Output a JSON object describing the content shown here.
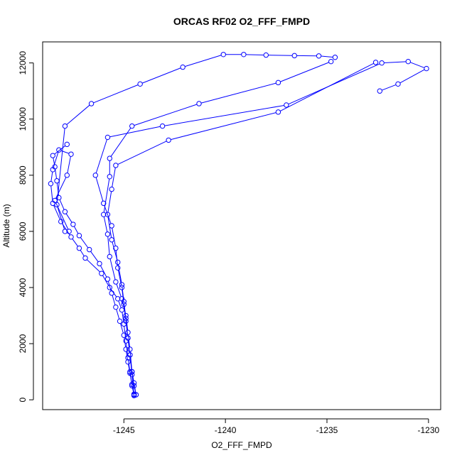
{
  "chart_data": {
    "type": "line",
    "title": "ORCAS RF02 O2_FFF_FMPD",
    "xlabel": "O2_FFF_FMPD",
    "ylabel": "Altitude (m)",
    "xlim": [
      -1249.0,
      -1229.4
    ],
    "ylim": [
      -350,
      12750
    ],
    "xticks": [
      -1245,
      -1240,
      -1235,
      -1230
    ],
    "xtick_labels": [
      "-1245",
      "-1240",
      "-1235",
      "-1230"
    ],
    "yticks": [
      0,
      2000,
      4000,
      6000,
      8000,
      10000,
      12000
    ],
    "ytick_labels": [
      "0",
      "2000",
      "4000",
      "6000",
      "8000",
      "10000",
      "12000"
    ],
    "grid": false,
    "legend": "none",
    "series_color": "#0000ff",
    "series": [
      {
        "x": [
          -1244.5,
          -1244.6,
          -1244.7,
          -1244.8,
          -1244.9,
          -1245.0,
          -1245.1,
          -1245.3,
          -1245.7,
          -1246.1,
          -1246.9,
          -1247.2,
          -1247.6,
          -1248.1,
          -1248.5,
          -1248.6,
          -1248.5,
          -1248.2,
          -1247.6,
          -1247.8,
          -1248.4,
          -1247.7,
          -1247.9,
          -1248.3,
          -1247.9,
          -1246.6,
          -1244.2,
          -1242.1,
          -1240.1,
          -1239.1,
          -1238.0,
          -1236.6,
          -1235.4,
          -1234.6
        ],
        "y": [
          180,
          500,
          1000,
          1500,
          2100,
          2700,
          3200,
          3600,
          4000,
          4500,
          5050,
          5400,
          5800,
          6350,
          7000,
          7700,
          8200,
          8900,
          8750,
          8000,
          7100,
          6000,
          6000,
          6950,
          9750,
          10550,
          11250,
          11850,
          12300,
          12300,
          12280,
          12260,
          12250,
          12200
        ]
      },
      {
        "x": [
          -1234.8,
          -1237.4,
          -1241.3,
          -1244.6,
          -1245.7,
          -1245.7,
          -1246.0,
          -1245.8,
          -1245.7,
          -1245.4,
          -1245.1,
          -1244.9,
          -1244.8,
          -1244.7,
          -1244.6,
          -1244.5,
          -1244.4
        ],
        "y": [
          12050,
          11300,
          10550,
          9750,
          8600,
          7950,
          6600,
          5900,
          5100,
          4200,
          3600,
          3000,
          2400,
          1800,
          1000,
          500,
          180
        ]
      },
      {
        "x": [
          -1244.4,
          -1244.5,
          -1244.6,
          -1244.7,
          -1244.8,
          -1244.9,
          -1245.0,
          -1245.1,
          -1245.3,
          -1245.4,
          -1245.6,
          -1246.0,
          -1246.4,
          -1245.8,
          -1243.1,
          -1237.0,
          -1232.3,
          -1231.0,
          -1230.1,
          -1231.5,
          -1232.4
        ],
        "y": [
          180,
          600,
          1000,
          1600,
          2200,
          2800,
          3400,
          4000,
          4700,
          5400,
          6200,
          7000,
          8000,
          9350,
          9750,
          10500,
          12000,
          12050,
          11800,
          11250,
          11000
        ]
      },
      {
        "x": [
          -1232.6,
          -1237.4,
          -1242.8,
          -1245.4,
          -1245.6,
          -1245.8,
          -1245.6,
          -1245.3,
          -1245.1,
          -1245.0,
          -1244.9,
          -1244.8,
          -1244.7,
          -1244.6,
          -1244.5
        ],
        "y": [
          12020,
          10250,
          9250,
          8350,
          7500,
          6600,
          5700,
          4900,
          4100,
          3500,
          2900,
          2200,
          1600,
          900,
          150
        ]
      },
      {
        "x": [
          -1244.5,
          -1244.6,
          -1244.7,
          -1244.8,
          -1244.9,
          -1245.0,
          -1245.2,
          -1245.4,
          -1245.6,
          -1245.8,
          -1246.2,
          -1246.7,
          -1247.2,
          -1247.5,
          -1247.9,
          -1248.2,
          -1248.3,
          -1248.4,
          -1248.5,
          -1247.8
        ],
        "y": [
          200,
          550,
          950,
          1350,
          1800,
          2300,
          2800,
          3300,
          3800,
          4300,
          4850,
          5350,
          5850,
          6250,
          6700,
          7200,
          7800,
          8300,
          8700,
          9100
        ]
      }
    ]
  }
}
